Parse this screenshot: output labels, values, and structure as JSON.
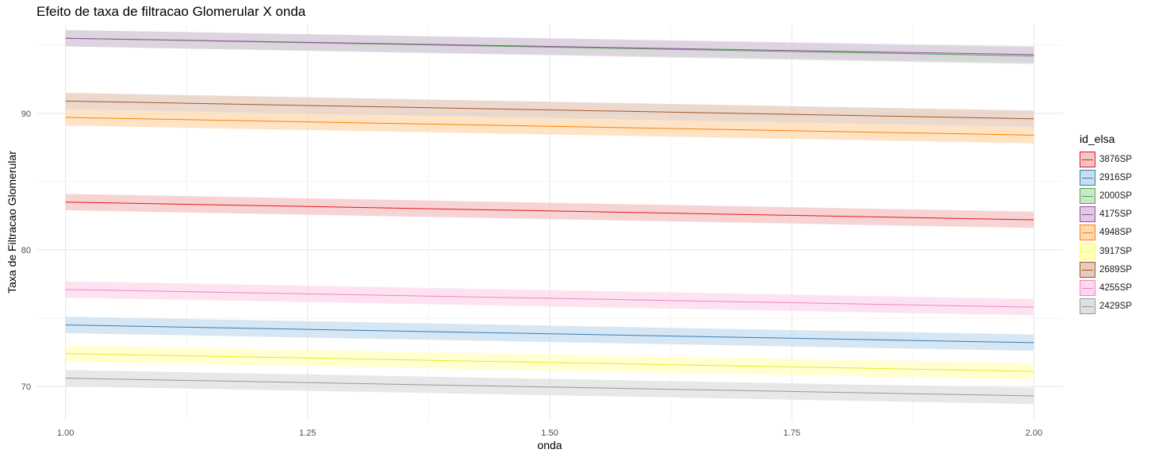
{
  "chart_data": {
    "type": "line",
    "title": "Efeito de taxa de filtracao Glomerular X onda",
    "xlabel": "onda",
    "ylabel": "Taxa de Filtracao Glomerular",
    "xlim": [
      0.97,
      2.03
    ],
    "ylim": [
      67.5,
      96.5
    ],
    "x_ticks": [
      1.0,
      1.25,
      1.5,
      1.75,
      2.0
    ],
    "x_tick_labels": [
      "1.00",
      "1.25",
      "1.50",
      "1.75",
      "2.00"
    ],
    "y_ticks": [
      70,
      80,
      90
    ],
    "y_tick_labels": [
      "70",
      "80",
      "90"
    ],
    "grid": true,
    "legend_title": "id_elsa",
    "legend_position": "right",
    "confidence_band": 0.6,
    "series": [
      {
        "name": "3876SP",
        "color": "#E41A1C",
        "fill": "#F6C4C5",
        "x": [
          1.0,
          2.0
        ],
        "y": [
          83.5,
          82.2
        ]
      },
      {
        "name": "2916SP",
        "color": "#377EB8",
        "fill": "#C8DDEE",
        "x": [
          1.0,
          2.0
        ],
        "y": [
          74.5,
          73.2
        ]
      },
      {
        "name": "2000SP",
        "color": "#4DAF4A",
        "fill": "#CBE7CA",
        "x": [
          1.0,
          2.0
        ],
        "y": [
          95.5,
          94.2
        ]
      },
      {
        "name": "4175SP",
        "color": "#984EA3",
        "fill": "#DECBE2",
        "x": [
          1.0,
          2.0
        ],
        "y": [
          95.5,
          94.3
        ]
      },
      {
        "name": "4948SP",
        "color": "#FF7F00",
        "fill": "#FFD9B2",
        "x": [
          1.0,
          2.0
        ],
        "y": [
          89.7,
          88.4
        ]
      },
      {
        "name": "3917SP",
        "color": "#FFFF33",
        "fill": "#FFFFC2",
        "x": [
          1.0,
          2.0
        ],
        "y": [
          72.4,
          71.1
        ]
      },
      {
        "name": "2689SP",
        "color": "#A65628",
        "fill": "#E4CCBE",
        "x": [
          1.0,
          2.0
        ],
        "y": [
          90.9,
          89.6
        ]
      },
      {
        "name": "4255SP",
        "color": "#F781BF",
        "fill": "#FCD9EC",
        "x": [
          1.0,
          2.0
        ],
        "y": [
          77.1,
          75.8
        ]
      },
      {
        "name": "2429SP",
        "color": "#999999",
        "fill": "#E0E0E0",
        "x": [
          1.0,
          2.0
        ],
        "y": [
          70.6,
          69.3
        ]
      }
    ]
  }
}
